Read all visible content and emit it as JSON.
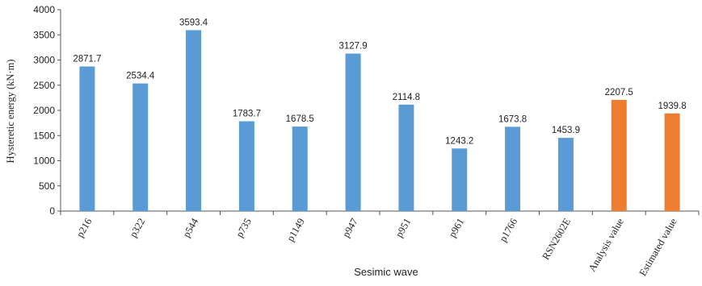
{
  "chart_data": {
    "type": "bar",
    "categories": [
      "p216",
      "p322",
      "p544",
      "p735",
      "p1149",
      "p947",
      "p951",
      "p961",
      "p1766",
      "RSN2602E",
      "Analysis value",
      "Estimated value"
    ],
    "values": [
      2871.7,
      2534.4,
      3593.4,
      1783.7,
      1678.5,
      3127.9,
      2114.8,
      1243.2,
      1673.8,
      1453.9,
      2207.5,
      1939.8
    ],
    "value_labels": [
      "2871.7",
      "2534.4",
      "3593.4",
      "1783.7",
      "1678.5",
      "3127.9",
      "2114.8",
      "1243.2",
      "1673.8",
      "1453.9",
      "2207.5",
      "1939.8"
    ],
    "bar_colors": [
      "#5b9bd5",
      "#5b9bd5",
      "#5b9bd5",
      "#5b9bd5",
      "#5b9bd5",
      "#5b9bd5",
      "#5b9bd5",
      "#5b9bd5",
      "#5b9bd5",
      "#5b9bd5",
      "#ed7d31",
      "#ed7d31"
    ],
    "title": "",
    "xlabel": "Sesimic wave",
    "ylabel": "Hysteretic energy (kN·m)",
    "ylim": [
      0,
      4000
    ],
    "yticks": [
      "0",
      "500",
      "1000",
      "1500",
      "2000",
      "2500",
      "3000",
      "3500",
      "4000"
    ],
    "grid": false,
    "legend": "none"
  }
}
